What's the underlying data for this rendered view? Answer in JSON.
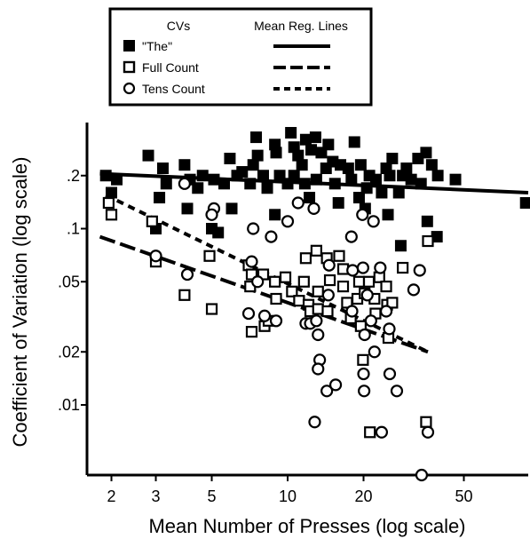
{
  "chart_data": {
    "type": "scatter",
    "title": "",
    "xlabel": "Mean Number of Presses (log scale)",
    "ylabel": "Coefficient of Variation (log scale)",
    "x_scale": "log",
    "y_scale": "log",
    "xlim": [
      1.6,
      90
    ],
    "ylim": [
      0.004,
      0.4
    ],
    "x_ticks": [
      2,
      3,
      5,
      10,
      20,
      50
    ],
    "x_tick_labels": [
      "2",
      "3",
      "5",
      "10",
      "20",
      "50"
    ],
    "y_ticks": [
      0.01,
      0.02,
      0.05,
      0.1,
      0.2
    ],
    "y_tick_labels": [
      ".01",
      ".02",
      ".05",
      ".1",
      ".2"
    ],
    "grid": false,
    "legend": {
      "position": "top-center",
      "col1_header": "CVs",
      "col2_header": "Mean Reg. Lines"
    },
    "series": [
      {
        "name": "\"The\"",
        "marker": "filled-square",
        "line_style": "solid",
        "regression": {
          "x": [
            1.8,
            90
          ],
          "y": [
            0.205,
            0.16
          ]
        },
        "points": [
          [
            1.9,
            0.2
          ],
          [
            2.1,
            0.19
          ],
          [
            2.0,
            0.16
          ],
          [
            2.8,
            0.26
          ],
          [
            3.2,
            0.22
          ],
          [
            3.3,
            0.18
          ],
          [
            3.1,
            0.15
          ],
          [
            3.0,
            0.1
          ],
          [
            3.9,
            0.23
          ],
          [
            4.1,
            0.19
          ],
          [
            4.4,
            0.17
          ],
          [
            4.0,
            0.13
          ],
          [
            4.6,
            0.2
          ],
          [
            5.1,
            0.19
          ],
          [
            5.6,
            0.18
          ],
          [
            5.0,
            0.1
          ],
          [
            5.3,
            0.095
          ],
          [
            5.9,
            0.25
          ],
          [
            6.3,
            0.2
          ],
          [
            6.6,
            0.21
          ],
          [
            6.0,
            0.13
          ],
          [
            7.1,
            0.18
          ],
          [
            7.5,
            0.33
          ],
          [
            7.6,
            0.26
          ],
          [
            7.3,
            0.23
          ],
          [
            8.0,
            0.2
          ],
          [
            8.3,
            0.17
          ],
          [
            8.9,
            0.3
          ],
          [
            9.0,
            0.27
          ],
          [
            9.3,
            0.2
          ],
          [
            8.9,
            0.12
          ],
          [
            10.3,
            0.35
          ],
          [
            10.6,
            0.29
          ],
          [
            11.0,
            0.26
          ],
          [
            11.4,
            0.23
          ],
          [
            11.8,
            0.32
          ],
          [
            12.4,
            0.28
          ],
          [
            10.6,
            0.2
          ],
          [
            11.7,
            0.18
          ],
          [
            10.0,
            0.18
          ],
          [
            12.2,
            0.15
          ],
          [
            12.9,
            0.33
          ],
          [
            13.6,
            0.27
          ],
          [
            14.2,
            0.22
          ],
          [
            13.0,
            0.19
          ],
          [
            14.5,
            0.3
          ],
          [
            15.1,
            0.24
          ],
          [
            15.4,
            0.18
          ],
          [
            16.2,
            0.23
          ],
          [
            15.9,
            0.14
          ],
          [
            17.4,
            0.22
          ],
          [
            17.9,
            0.19
          ],
          [
            18.4,
            0.31
          ],
          [
            19.5,
            0.23
          ],
          [
            20.6,
            0.17
          ],
          [
            21.1,
            0.2
          ],
          [
            19.2,
            0.15
          ],
          [
            20.3,
            0.13
          ],
          [
            22.4,
            0.19
          ],
          [
            23.6,
            0.16
          ],
          [
            24.6,
            0.22
          ],
          [
            26.0,
            0.25
          ],
          [
            25.4,
            0.2
          ],
          [
            27.6,
            0.16
          ],
          [
            25.0,
            0.12
          ],
          [
            28.6,
            0.2
          ],
          [
            29.6,
            0.22
          ],
          [
            30.9,
            0.19
          ],
          [
            32.9,
            0.25
          ],
          [
            35.4,
            0.27
          ],
          [
            33.8,
            0.18
          ],
          [
            37.3,
            0.23
          ],
          [
            39.4,
            0.2
          ],
          [
            35.8,
            0.11
          ],
          [
            39.1,
            0.09
          ],
          [
            46.3,
            0.19
          ],
          [
            28.1,
            0.08
          ],
          [
            88,
            0.14
          ]
        ]
      },
      {
        "name": "Full Count",
        "marker": "open-square",
        "line_style": "long-dash",
        "regression": {
          "x": [
            1.8,
            36
          ],
          "y": [
            0.09,
            0.02
          ]
        },
        "points": [
          [
            1.95,
            0.14
          ],
          [
            2.0,
            0.12
          ],
          [
            2.9,
            0.11
          ],
          [
            3.0,
            0.065
          ],
          [
            3.9,
            0.042
          ],
          [
            4.9,
            0.07
          ],
          [
            5.0,
            0.035
          ],
          [
            7.0,
            0.062
          ],
          [
            7.2,
            0.055
          ],
          [
            7.1,
            0.047
          ],
          [
            7.2,
            0.026
          ],
          [
            8.0,
            0.055
          ],
          [
            8.1,
            0.028
          ],
          [
            8.9,
            0.05
          ],
          [
            9.0,
            0.04
          ],
          [
            8.4,
            0.03
          ],
          [
            9.8,
            0.053
          ],
          [
            10.4,
            0.044
          ],
          [
            11.1,
            0.039
          ],
          [
            11.8,
            0.068
          ],
          [
            11.6,
            0.05
          ],
          [
            12.1,
            0.037
          ],
          [
            12.3,
            0.034
          ],
          [
            13.0,
            0.075
          ],
          [
            13.2,
            0.044
          ],
          [
            13.2,
            0.035
          ],
          [
            14.3,
            0.068
          ],
          [
            14.7,
            0.051
          ],
          [
            14.4,
            0.034
          ],
          [
            16.0,
            0.07
          ],
          [
            16.6,
            0.059
          ],
          [
            16.6,
            0.047
          ],
          [
            17.2,
            0.038
          ],
          [
            17.8,
            0.031
          ],
          [
            19.2,
            0.05
          ],
          [
            18.9,
            0.04
          ],
          [
            19.5,
            0.028
          ],
          [
            20.2,
            0.043
          ],
          [
            19.9,
            0.018
          ],
          [
            21.0,
            0.05
          ],
          [
            22.1,
            0.04
          ],
          [
            22.3,
            0.033
          ],
          [
            23.1,
            0.053
          ],
          [
            24.6,
            0.047
          ],
          [
            24.8,
            0.037
          ],
          [
            25.1,
            0.024
          ],
          [
            26.0,
            0.038
          ],
          [
            28.6,
            0.06
          ],
          [
            36.0,
            0.085
          ],
          [
            35.4,
            0.008
          ],
          [
            21.2,
            0.007
          ]
        ]
      },
      {
        "name": "Tens Count",
        "marker": "open-circle",
        "line_style": "short-dash",
        "regression": {
          "x": [
            1.9,
            36
          ],
          "y": [
            0.155,
            0.02
          ]
        },
        "points": [
          [
            3.9,
            0.18
          ],
          [
            5.1,
            0.13
          ],
          [
            5.0,
            0.12
          ],
          [
            3.0,
            0.07
          ],
          [
            4.0,
            0.055
          ],
          [
            7.2,
            0.065
          ],
          [
            7.6,
            0.05
          ],
          [
            7.0,
            0.033
          ],
          [
            8.1,
            0.032
          ],
          [
            9.0,
            0.03
          ],
          [
            7.3,
            0.1
          ],
          [
            8.6,
            0.09
          ],
          [
            10.0,
            0.11
          ],
          [
            11.0,
            0.14
          ],
          [
            12.7,
            0.13
          ],
          [
            11.8,
            0.029
          ],
          [
            12.3,
            0.029
          ],
          [
            13.0,
            0.03
          ],
          [
            13.2,
            0.025
          ],
          [
            13.4,
            0.018
          ],
          [
            13.2,
            0.016
          ],
          [
            14.6,
            0.062
          ],
          [
            14.5,
            0.042
          ],
          [
            14.3,
            0.012
          ],
          [
            12.8,
            0.008
          ],
          [
            15.5,
            0.013
          ],
          [
            17.9,
            0.09
          ],
          [
            18.1,
            0.058
          ],
          [
            18.0,
            0.034
          ],
          [
            19.9,
            0.06
          ],
          [
            20.7,
            0.042
          ],
          [
            20.2,
            0.025
          ],
          [
            20.0,
            0.015
          ],
          [
            20.1,
            0.012
          ],
          [
            21.4,
            0.03
          ],
          [
            22.1,
            0.02
          ],
          [
            19.8,
            0.12
          ],
          [
            21.9,
            0.11
          ],
          [
            23.3,
            0.06
          ],
          [
            24.6,
            0.034
          ],
          [
            25.3,
            0.027
          ],
          [
            25.4,
            0.015
          ],
          [
            27.1,
            0.012
          ],
          [
            31.6,
            0.045
          ],
          [
            33.4,
            0.058
          ],
          [
            36.0,
            0.007
          ],
          [
            34.0,
            0.004
          ],
          [
            23.6,
            0.007
          ]
        ]
      }
    ]
  },
  "colors": {
    "background": "#ffffff",
    "foreground": "#000000"
  }
}
